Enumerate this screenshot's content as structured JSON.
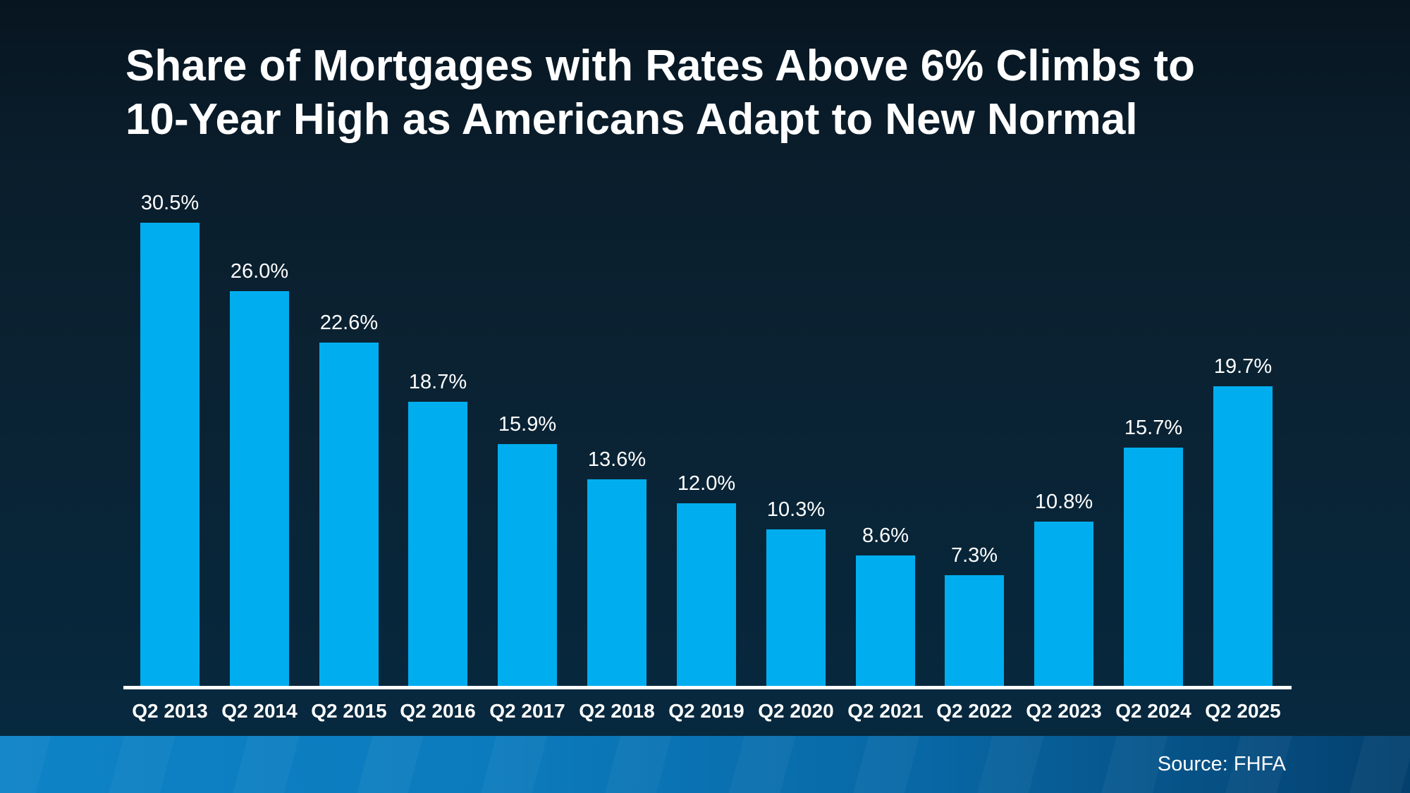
{
  "title": {
    "lines": [
      "Share of Mortgages with Rates Above 6% Climbs to",
      "10-Year High as Americans Adapt to New Normal"
    ]
  },
  "chart_data": {
    "type": "bar",
    "title": "Share of Mortgages with Rates Above 6% Climbs to 10-Year High as Americans Adapt to New Normal",
    "categories": [
      "Q2 2013",
      "Q2 2014",
      "Q2 2015",
      "Q2 2016",
      "Q2 2017",
      "Q2 2018",
      "Q2 2019",
      "Q2 2020",
      "Q2 2021",
      "Q2 2022",
      "Q2 2023",
      "Q2 2024",
      "Q2 2025"
    ],
    "values": [
      30.5,
      26.0,
      22.6,
      18.7,
      15.9,
      13.6,
      12.0,
      10.3,
      8.6,
      7.3,
      10.8,
      15.7,
      19.7
    ],
    "data_labels": [
      "30.5%",
      "26.0%",
      "22.6%",
      "18.7%",
      "15.9%",
      "13.6%",
      "12.0%",
      "10.3%",
      "8.6%",
      "7.3%",
      "10.8%",
      "15.7%",
      "19.7%"
    ],
    "xlabel": "",
    "ylabel": "",
    "ylim": [
      0,
      33
    ],
    "grid": false,
    "legend": false,
    "bar_color": "#00aeef",
    "label_color": "#ffffff",
    "axis_line_color": "#ffffff",
    "background_top": "#071520",
    "background_bottom": "#062a40"
  },
  "footer": {
    "source_label": "Source: FHFA",
    "band_gradient_left": "#0d83c6",
    "band_gradient_right": "#04406e"
  }
}
